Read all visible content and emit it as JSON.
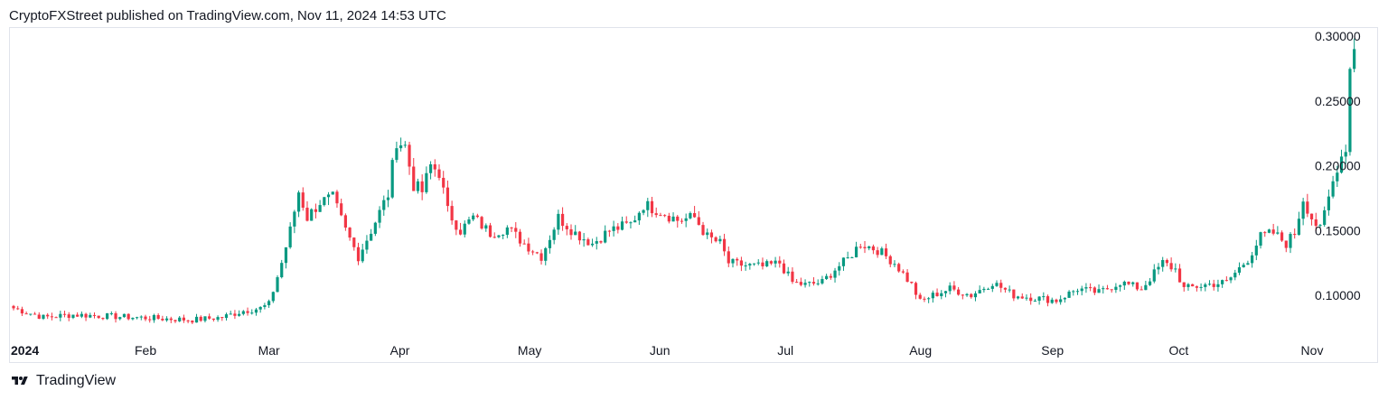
{
  "header": {
    "text": "CryptoFXStreet published on TradingView.com, Nov 11, 2024 14:53 UTC"
  },
  "footer": {
    "brand": "TradingView",
    "logo_icon": "tradingview-logo-icon"
  },
  "colors": {
    "up": "#26a69a",
    "up_dark": "#089981",
    "down": "#f23645",
    "grid": "#e0e3eb",
    "text": "#131722"
  },
  "chart_data": {
    "type": "candlestick",
    "title": "",
    "xlabel": "",
    "ylabel": "",
    "grid": false,
    "y_axis_side": "right",
    "ylim": [
      0.07,
      0.303
    ],
    "y_ticks": [
      "0.30000",
      "0.25000",
      "0.20000",
      "0.15000",
      "0.10000"
    ],
    "y_tick_values": [
      0.3,
      0.25,
      0.2,
      0.15,
      0.1
    ],
    "x_ticks": [
      {
        "label": "2024",
        "bold": true,
        "day": 0
      },
      {
        "label": "Feb",
        "bold": false,
        "day": 31
      },
      {
        "label": "Mar",
        "bold": false,
        "day": 60
      },
      {
        "label": "Apr",
        "bold": false,
        "day": 91
      },
      {
        "label": "May",
        "bold": false,
        "day": 121
      },
      {
        "label": "Jun",
        "bold": false,
        "day": 152
      },
      {
        "label": "Jul",
        "bold": false,
        "day": 182
      },
      {
        "label": "Aug",
        "bold": false,
        "day": 213
      },
      {
        "label": "Sep",
        "bold": false,
        "day": 244
      },
      {
        "label": "Oct",
        "bold": false,
        "day": 274
      },
      {
        "label": "Nov",
        "bold": false,
        "day": 305
      }
    ],
    "close_anchors": [
      [
        0,
        0.09
      ],
      [
        7,
        0.083
      ],
      [
        14,
        0.085
      ],
      [
        21,
        0.084
      ],
      [
        28,
        0.083
      ],
      [
        35,
        0.082
      ],
      [
        42,
        0.081
      ],
      [
        49,
        0.083
      ],
      [
        54,
        0.088
      ],
      [
        58,
        0.09
      ],
      [
        60,
        0.093
      ],
      [
        63,
        0.125
      ],
      [
        65,
        0.15
      ],
      [
        67,
        0.18
      ],
      [
        69,
        0.16
      ],
      [
        72,
        0.172
      ],
      [
        75,
        0.175
      ],
      [
        78,
        0.15
      ],
      [
        81,
        0.13
      ],
      [
        84,
        0.15
      ],
      [
        88,
        0.178
      ],
      [
        90,
        0.22
      ],
      [
        92,
        0.215
      ],
      [
        94,
        0.185
      ],
      [
        96,
        0.18
      ],
      [
        98,
        0.2
      ],
      [
        100,
        0.195
      ],
      [
        102,
        0.165
      ],
      [
        105,
        0.15
      ],
      [
        108,
        0.16
      ],
      [
        112,
        0.148
      ],
      [
        116,
        0.152
      ],
      [
        120,
        0.14
      ],
      [
        124,
        0.13
      ],
      [
        128,
        0.16
      ],
      [
        132,
        0.148
      ],
      [
        136,
        0.14
      ],
      [
        140,
        0.15
      ],
      [
        145,
        0.155
      ],
      [
        148,
        0.17
      ],
      [
        152,
        0.165
      ],
      [
        156,
        0.158
      ],
      [
        160,
        0.16
      ],
      [
        163,
        0.145
      ],
      [
        166,
        0.14
      ],
      [
        168,
        0.125
      ],
      [
        172,
        0.123
      ],
      [
        176,
        0.122
      ],
      [
        180,
        0.125
      ],
      [
        183,
        0.11
      ],
      [
        186,
        0.108
      ],
      [
        190,
        0.11
      ],
      [
        193,
        0.12
      ],
      [
        196,
        0.128
      ],
      [
        199,
        0.14
      ],
      [
        203,
        0.135
      ],
      [
        207,
        0.125
      ],
      [
        211,
        0.108
      ],
      [
        213,
        0.095
      ],
      [
        216,
        0.1
      ],
      [
        220,
        0.105
      ],
      [
        225,
        0.1
      ],
      [
        230,
        0.11
      ],
      [
        235,
        0.1
      ],
      [
        240,
        0.098
      ],
      [
        245,
        0.096
      ],
      [
        250,
        0.105
      ],
      [
        255,
        0.102
      ],
      [
        260,
        0.11
      ],
      [
        265,
        0.105
      ],
      [
        270,
        0.125
      ],
      [
        273,
        0.12
      ],
      [
        275,
        0.105
      ],
      [
        280,
        0.108
      ],
      [
        285,
        0.11
      ],
      [
        290,
        0.128
      ],
      [
        293,
        0.145
      ],
      [
        296,
        0.148
      ],
      [
        299,
        0.14
      ],
      [
        301,
        0.148
      ],
      [
        303,
        0.175
      ],
      [
        305,
        0.16
      ],
      [
        307,
        0.15
      ],
      [
        309,
        0.175
      ],
      [
        311,
        0.2
      ],
      [
        313,
        0.215
      ],
      [
        314,
        0.275
      ],
      [
        315,
        0.29
      ]
    ]
  }
}
